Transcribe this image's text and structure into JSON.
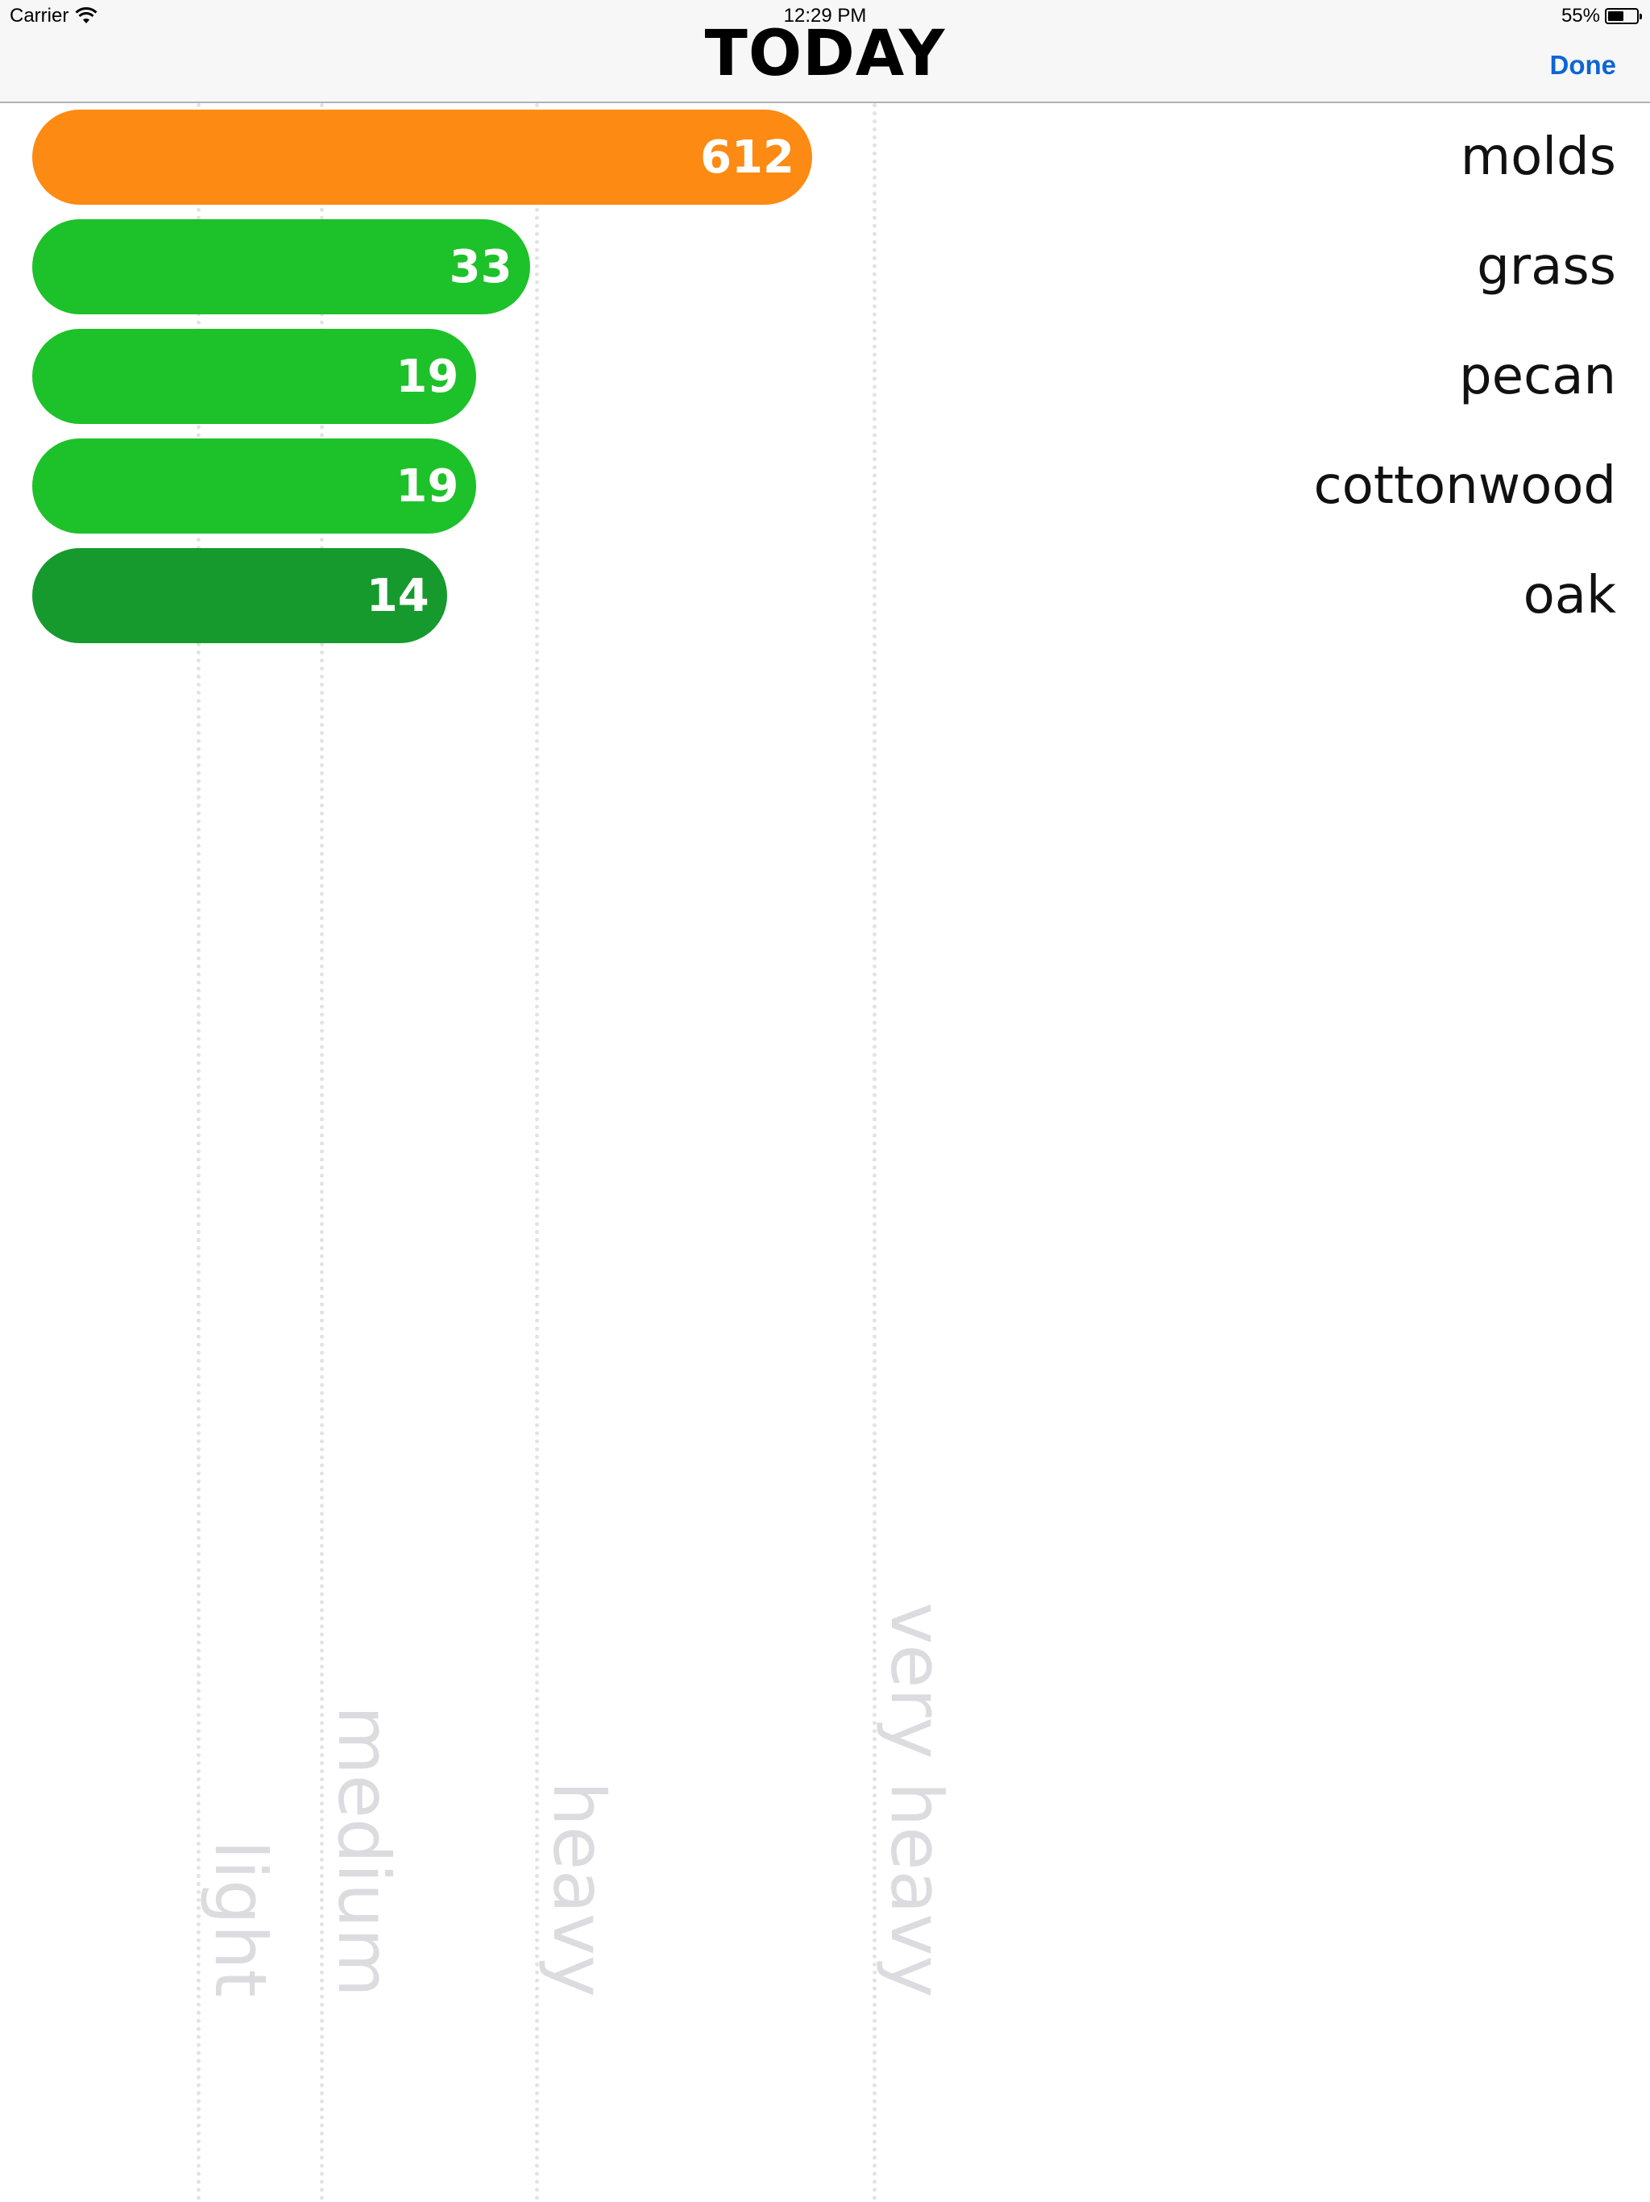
{
  "status_bar": {
    "carrier": "Carrier",
    "time": "12:29 PM",
    "battery": "55%",
    "battery_level": 0.55
  },
  "nav": {
    "title": "TODAY",
    "done_label": "Done",
    "done_color": "#0c65d6"
  },
  "chart_data": {
    "type": "bar",
    "orientation": "horizontal",
    "categories": [
      "molds",
      "grass",
      "pecan",
      "cottonwood",
      "oak"
    ],
    "values": [
      612,
      33,
      19,
      19,
      14
    ],
    "value_labels": [
      "612",
      "33",
      "19",
      "19",
      "14"
    ],
    "colors": [
      "#fd8a12",
      "#1dc129",
      "#1dc129",
      "#1dc129",
      "#179a2d"
    ],
    "thresholds": [
      {
        "label": "light",
        "position": 0.12
      },
      {
        "label": "medium",
        "position": 0.195
      },
      {
        "label": "heavy",
        "position": 0.325
      },
      {
        "label": "very heavy",
        "position": 0.53
      }
    ]
  }
}
